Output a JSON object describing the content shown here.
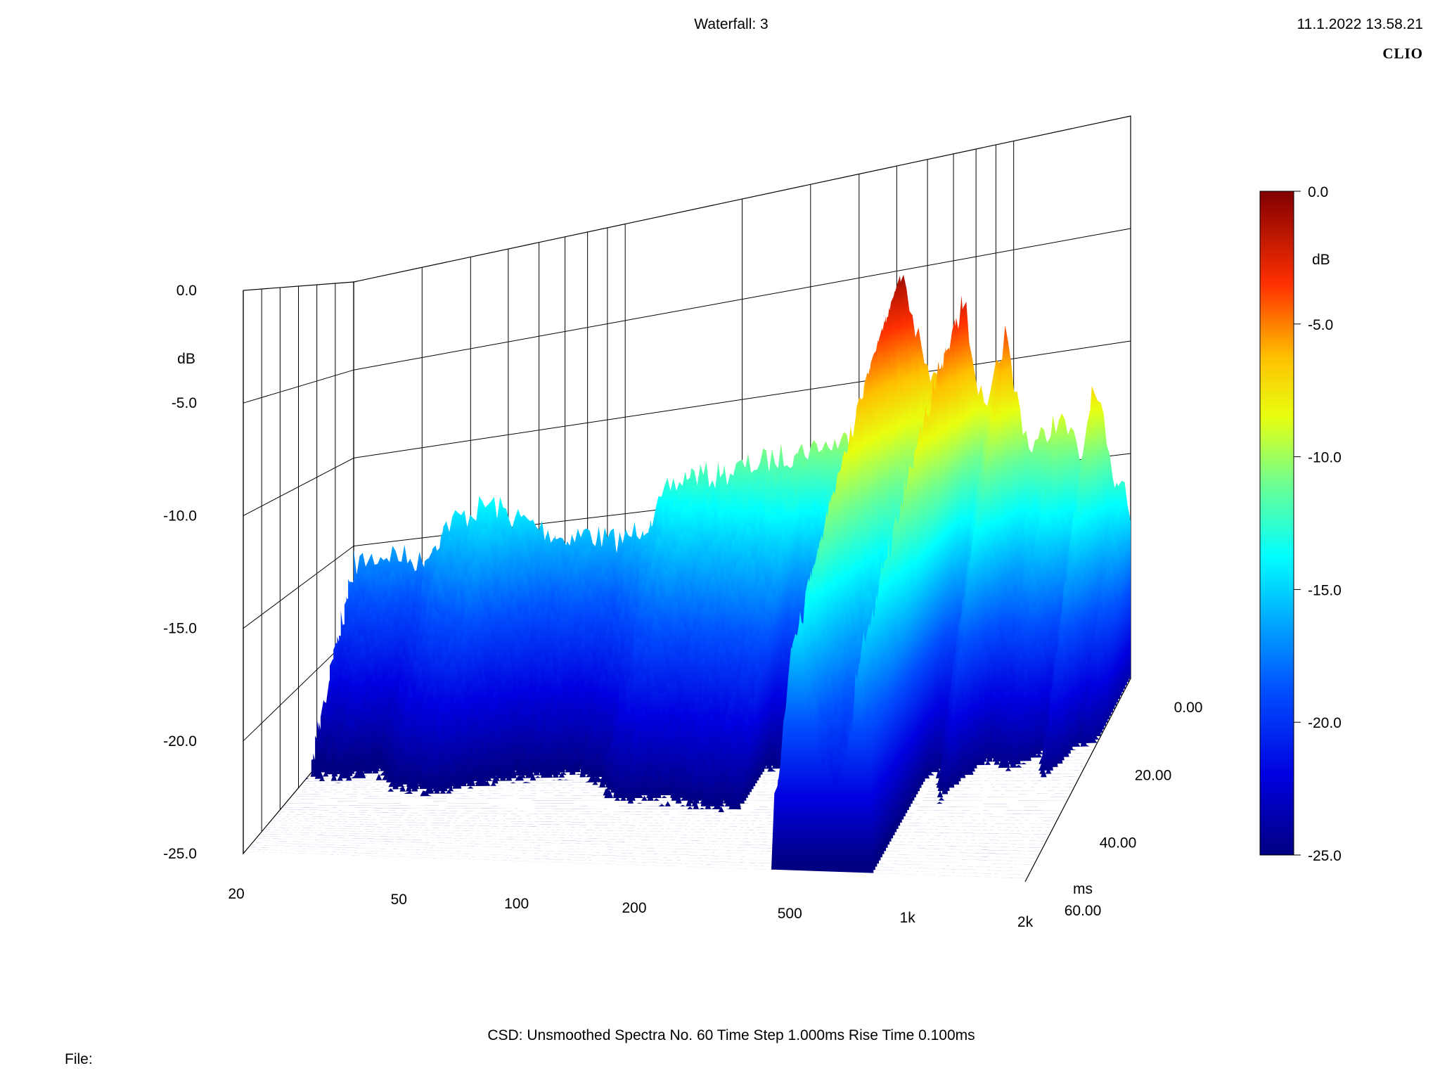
{
  "header": {
    "title": "Waterfall: 3",
    "timestamp": "11.1.2022 13.58.21",
    "brand": "CLIO"
  },
  "footer": {
    "info": "CSD:   Unsmoothed   Spectra No. 60   Time Step 1.000ms   Rise Time 0.100ms",
    "file_label": "File:"
  },
  "chart_data": {
    "type": "waterfall",
    "x_axis": {
      "scale": "log",
      "range": [
        20,
        2000
      ],
      "tick_values": [
        20,
        50,
        100,
        200,
        500,
        1000,
        2000
      ],
      "tick_labels": [
        "20",
        "50",
        "100",
        "200",
        "500",
        "1k",
        "2k"
      ]
    },
    "y_axis": {
      "label": "dB",
      "range": [
        -25,
        0
      ],
      "tick_labels": [
        "0.0",
        "-5.0",
        "-10.0",
        "-15.0",
        "-20.0",
        "-25.0"
      ]
    },
    "z_axis": {
      "label": "ms",
      "range": [
        0,
        60
      ],
      "tick_labels": [
        "0.00",
        "20.00",
        "40.00",
        "60.00"
      ]
    },
    "colorbar": {
      "label": "dB",
      "range": [
        -25,
        0
      ],
      "tick_labels": [
        "0.0",
        "-5.0",
        "-10.0",
        "-15.0",
        "-20.0",
        "-25.0"
      ],
      "colormap": "jet"
    },
    "spectra_count": 60,
    "time_step_ms": 1.0,
    "first_spectrum_db": [
      [
        20,
        -15.5
      ],
      [
        25,
        -15.0
      ],
      [
        30,
        -15.7
      ],
      [
        35,
        -13.5
      ],
      [
        40,
        -13.0
      ],
      [
        45,
        -12.5
      ],
      [
        50,
        -13.2
      ],
      [
        60,
        -14.0
      ],
      [
        70,
        -14.8
      ],
      [
        80,
        -14.5
      ],
      [
        90,
        -15.0
      ],
      [
        100,
        -15.0
      ],
      [
        120,
        -13.7
      ],
      [
        130,
        -12.2
      ],
      [
        150,
        -11.5
      ],
      [
        170,
        -11.7
      ],
      [
        200,
        -11.3
      ],
      [
        250,
        -10.8
      ],
      [
        300,
        -10.4
      ],
      [
        350,
        -10.2
      ],
      [
        400,
        -9.8
      ],
      [
        430,
        -10.0
      ],
      [
        460,
        -7.5
      ],
      [
        490,
        -2.5
      ],
      [
        520,
        -0.7
      ],
      [
        550,
        -3.5
      ],
      [
        600,
        -6.5
      ],
      [
        650,
        -7.2
      ],
      [
        700,
        -6.0
      ],
      [
        740,
        -2.0
      ],
      [
        780,
        -5.5
      ],
      [
        850,
        -9.5
      ],
      [
        900,
        -6.8
      ],
      [
        950,
        -4.5
      ],
      [
        1000,
        -7.5
      ],
      [
        1100,
        -11.0
      ],
      [
        1200,
        -10.5
      ],
      [
        1300,
        -9.5
      ],
      [
        1400,
        -10.5
      ],
      [
        1500,
        -12.0
      ],
      [
        1600,
        -8.0
      ],
      [
        1700,
        -10.0
      ],
      [
        1800,
        -13.5
      ],
      [
        1900,
        -12.8
      ],
      [
        2000,
        -14.8
      ]
    ]
  }
}
